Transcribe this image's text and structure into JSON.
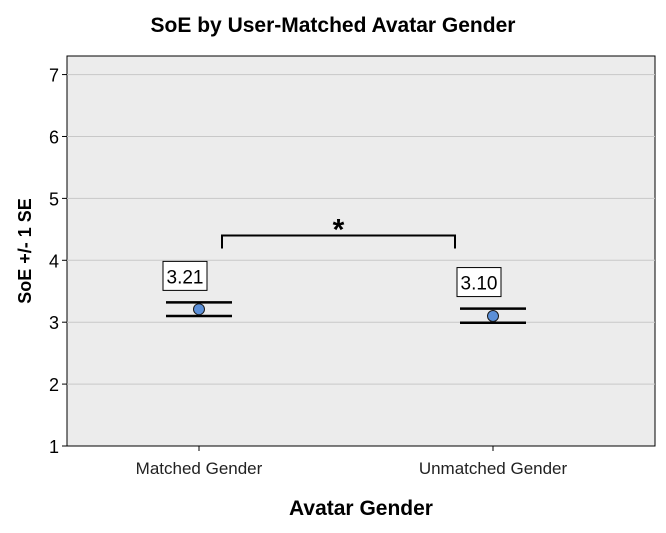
{
  "chart_data": {
    "type": "scatter",
    "title": "SoE by User-Matched Avatar Gender",
    "xlabel": "Avatar Gender",
    "ylabel": "SoE +/- 1 SE",
    "ylim": [
      1,
      7.3
    ],
    "yticks": [
      1,
      2,
      3,
      4,
      5,
      6,
      7
    ],
    "categories": [
      "Matched Gender",
      "Unmatched Gender"
    ],
    "values": [
      3.21,
      3.1
    ],
    "error_low": [
      3.1,
      2.99
    ],
    "error_high": [
      3.32,
      3.22
    ],
    "data_labels": [
      "3.21",
      "3.10"
    ],
    "grid": true,
    "significance": {
      "between": [
        "Matched Gender",
        "Unmatched Gender"
      ],
      "label": "*",
      "y": 4.4
    },
    "colors": {
      "marker": "#5b8fd8",
      "plot_bg": "#ececec",
      "grid": "#c8c8c8"
    }
  }
}
